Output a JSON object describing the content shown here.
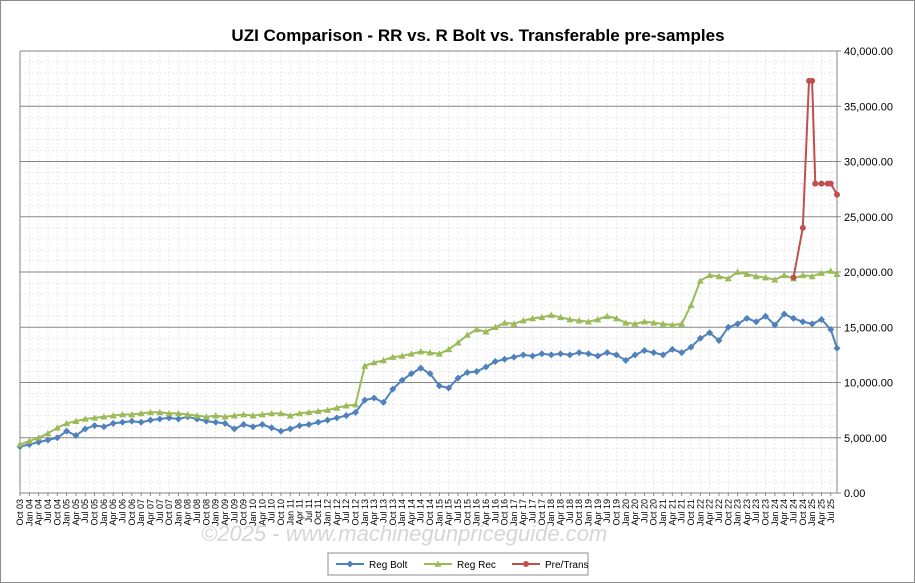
{
  "chart_data": {
    "type": "line",
    "title": "UZI Comparison - RR  vs. R Bolt vs. Transferable pre-samples",
    "xlabel": "",
    "ylabel": "",
    "ylim": [
      0,
      40000
    ],
    "y_ticks": [
      "0.00",
      "5,000.00",
      "10,000.00",
      "15,000.00",
      "20,000.00",
      "25,000.00",
      "30,000.00",
      "35,000.00",
      "40,000.00"
    ],
    "y_axis_side": "right",
    "grid": true,
    "legend_position": "bottom",
    "x_tick_labels": [
      "Oct 03",
      "Jan 04",
      "Apr 04",
      "Jul 04",
      "Oct 04",
      "Jan 05",
      "Apr 05",
      "Jul 05",
      "Oct 05",
      "Jan 06",
      "Apr 06",
      "Jul 06",
      "Oct 06",
      "Jan 07",
      "Apr 07",
      "Jul 07",
      "Oct 07",
      "Jan 08",
      "Apr 08",
      "Jul 08",
      "Oct 08",
      "Jan 09",
      "Apr 09",
      "Jul 09",
      "Oct 09",
      "Jan 10",
      "Apr 10",
      "Jul 10",
      "Oct 10",
      "Jan 11",
      "Apr 11",
      "Jul 11",
      "Oct 11",
      "Jan 12",
      "Apr 12",
      "Jul 12",
      "Oct 12",
      "Jan 13",
      "Apr 13",
      "Jul 13",
      "Oct 13",
      "Jan 14",
      "Apr 14",
      "Jul 14",
      "Oct 14",
      "Jan 15",
      "Apr 15",
      "Jul 15",
      "Oct 15",
      "Jan 16",
      "Apr 16",
      "Jul 16",
      "Oct 16",
      "Jan 17",
      "Apr 17",
      "Jul 17",
      "Oct 17",
      "Jan 18",
      "Apr 18",
      "Jul 18",
      "Oct 18",
      "Jan 19",
      "Apr 19",
      "Jul 19",
      "Oct 19",
      "Jan 20",
      "Apr 20",
      "Jul 20",
      "Oct 20",
      "Jan 21",
      "Apr 21",
      "Jul 21",
      "Oct 21",
      "Jan 22",
      "Apr 22",
      "Jul 22",
      "Oct 22",
      "Jan 23",
      "Apr 23",
      "Jul 23",
      "Oct 23",
      "Jan 24",
      "Apr 24",
      "Jul 24",
      "Oct 24",
      "Jan 25",
      "Apr 25",
      "Jul 25"
    ],
    "x_range": [
      "2003-10",
      "2025-09"
    ],
    "series": [
      {
        "name": "Reg Bolt",
        "color": "#4f81bd",
        "marker": "diamond",
        "x": [
          "2003-10",
          "2004-01",
          "2004-04",
          "2004-07",
          "2004-10",
          "2005-01",
          "2005-04",
          "2005-07",
          "2005-10",
          "2006-01",
          "2006-04",
          "2006-07",
          "2006-10",
          "2007-01",
          "2007-04",
          "2007-07",
          "2007-10",
          "2008-01",
          "2008-04",
          "2008-07",
          "2008-10",
          "2009-01",
          "2009-04",
          "2009-07",
          "2009-10",
          "2010-01",
          "2010-04",
          "2010-07",
          "2010-10",
          "2011-01",
          "2011-04",
          "2011-07",
          "2011-10",
          "2012-01",
          "2012-04",
          "2012-07",
          "2012-10",
          "2013-01",
          "2013-04",
          "2013-07",
          "2013-10",
          "2014-01",
          "2014-04",
          "2014-07",
          "2014-10",
          "2015-01",
          "2015-04",
          "2015-07",
          "2015-10",
          "2016-01",
          "2016-04",
          "2016-07",
          "2016-10",
          "2017-01",
          "2017-04",
          "2017-07",
          "2017-10",
          "2018-01",
          "2018-04",
          "2018-07",
          "2018-10",
          "2019-01",
          "2019-04",
          "2019-07",
          "2019-10",
          "2020-01",
          "2020-04",
          "2020-07",
          "2020-10",
          "2021-01",
          "2021-04",
          "2021-07",
          "2021-10",
          "2022-01",
          "2022-04",
          "2022-07",
          "2022-10",
          "2023-01",
          "2023-04",
          "2023-07",
          "2023-10",
          "2024-01",
          "2024-04",
          "2024-07",
          "2024-10",
          "2025-01",
          "2025-04",
          "2025-07",
          "2025-09"
        ],
        "values": [
          4200,
          4400,
          4600,
          4800,
          5000,
          5600,
          5200,
          5800,
          6100,
          6000,
          6300,
          6400,
          6500,
          6400,
          6600,
          6700,
          6800,
          6700,
          6900,
          6700,
          6500,
          6400,
          6300,
          5800,
          6200,
          6000,
          6200,
          5900,
          5600,
          5800,
          6100,
          6200,
          6400,
          6600,
          6800,
          7000,
          7300,
          8400,
          8600,
          8200,
          9400,
          10200,
          10800,
          11300,
          10800,
          9700,
          9500,
          10400,
          10900,
          11000,
          11400,
          11900,
          12100,
          12300,
          12500,
          12400,
          12600,
          12500,
          12600,
          12500,
          12700,
          12600,
          12400,
          12700,
          12500,
          12000,
          12500,
          12900,
          12700,
          12500,
          13000,
          12700,
          13200,
          14000,
          14500,
          13800,
          15000,
          15300,
          15800,
          15500,
          16000,
          15200,
          16200,
          15800,
          15500,
          15300,
          15700,
          14800,
          13100
        ]
      },
      {
        "name": "Reg Rec",
        "color": "#9bbb59",
        "marker": "triangle",
        "x": [
          "2003-10",
          "2004-01",
          "2004-04",
          "2004-07",
          "2004-10",
          "2005-01",
          "2005-04",
          "2005-07",
          "2005-10",
          "2006-01",
          "2006-04",
          "2006-07",
          "2006-10",
          "2007-01",
          "2007-04",
          "2007-07",
          "2007-10",
          "2008-01",
          "2008-04",
          "2008-07",
          "2008-10",
          "2009-01",
          "2009-04",
          "2009-07",
          "2009-10",
          "2010-01",
          "2010-04",
          "2010-07",
          "2010-10",
          "2011-01",
          "2011-04",
          "2011-07",
          "2011-10",
          "2012-01",
          "2012-04",
          "2012-07",
          "2012-10",
          "2013-01",
          "2013-04",
          "2013-07",
          "2013-10",
          "2014-01",
          "2014-04",
          "2014-07",
          "2014-10",
          "2015-01",
          "2015-04",
          "2015-07",
          "2015-10",
          "2016-01",
          "2016-04",
          "2016-07",
          "2016-10",
          "2017-01",
          "2017-04",
          "2017-07",
          "2017-10",
          "2018-01",
          "2018-04",
          "2018-07",
          "2018-10",
          "2019-01",
          "2019-04",
          "2019-07",
          "2019-10",
          "2020-01",
          "2020-04",
          "2020-07",
          "2020-10",
          "2021-01",
          "2021-04",
          "2021-07",
          "2021-10",
          "2022-01",
          "2022-04",
          "2022-07",
          "2022-10",
          "2023-01",
          "2023-04",
          "2023-07",
          "2023-10",
          "2024-01",
          "2024-04",
          "2024-07",
          "2024-10",
          "2025-01",
          "2025-04",
          "2025-07",
          "2025-09"
        ],
        "values": [
          4400,
          4700,
          5000,
          5400,
          5900,
          6300,
          6500,
          6700,
          6800,
          6900,
          7000,
          7100,
          7100,
          7200,
          7300,
          7300,
          7200,
          7200,
          7100,
          7000,
          6900,
          7000,
          6900,
          7000,
          7100,
          7000,
          7100,
          7200,
          7200,
          7000,
          7200,
          7300,
          7400,
          7500,
          7700,
          7900,
          8000,
          11500,
          11800,
          12000,
          12300,
          12400,
          12600,
          12800,
          12700,
          12600,
          13000,
          13600,
          14300,
          14800,
          14600,
          15000,
          15400,
          15300,
          15600,
          15800,
          15900,
          16100,
          15900,
          15700,
          15600,
          15500,
          15700,
          16000,
          15800,
          15400,
          15300,
          15500,
          15400,
          15300,
          15200,
          15300,
          17000,
          19200,
          19700,
          19600,
          19400,
          20000,
          19800,
          19600,
          19500,
          19300,
          19700,
          19400,
          19700,
          19600,
          19900,
          20100,
          19800
        ]
      },
      {
        "name": "Pre/Trans",
        "color": "#c0504d",
        "marker": "circle",
        "x": [
          "2024-07",
          "2024-10",
          "2024-12",
          "2025-01",
          "2025-02",
          "2025-04",
          "2025-06",
          "2025-07",
          "2025-09"
        ],
        "values": [
          19500,
          24000,
          37300,
          37300,
          28000,
          28000,
          28000,
          28000,
          27000
        ]
      }
    ]
  },
  "watermark": "©2025 - www.machinegunpriceguide.com",
  "legend": {
    "items": [
      "Reg Bolt",
      "Reg Rec",
      "Pre/Trans"
    ]
  }
}
